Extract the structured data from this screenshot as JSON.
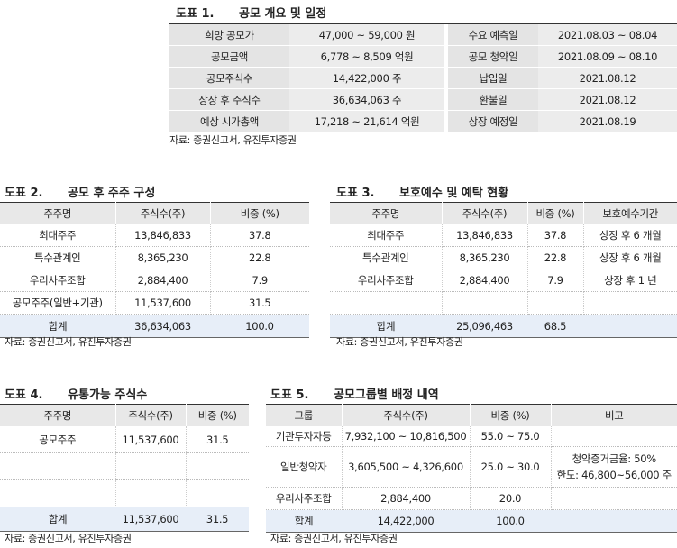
{
  "t1": {
    "num": "도표 1.",
    "title": "공모 개요 및 일정",
    "rows": [
      [
        "희망 공모가",
        "47,000 ~ 59,000 원",
        "수요 예측일",
        "2021.08.03 ~ 08.04"
      ],
      [
        "공모금액",
        "6,778 ~ 8,509 억원",
        "공모 청약일",
        "2021.08.09 ~ 08.10"
      ],
      [
        "공모주식수",
        "14,422,000 주",
        "납입일",
        "2021.08.12"
      ],
      [
        "상장 후 주식수",
        "36,634,063 주",
        "환불일",
        "2021.08.12"
      ],
      [
        "예상 시가총액",
        "17,218 ~ 21,614 억원",
        "상장 예정일",
        "2021.08.19"
      ]
    ],
    "source": "자료: 증권신고서, 유진투자증권"
  },
  "t2": {
    "num": "도표 2.",
    "title": "공모 후 주주 구성",
    "headers": [
      "주주명",
      "주식수(주)",
      "비중 (%)"
    ],
    "rows": [
      [
        "최대주주",
        "13,846,833",
        "37.8"
      ],
      [
        "특수관계인",
        "8,365,230",
        "22.8"
      ],
      [
        "우리사주조합",
        "2,884,400",
        "7.9"
      ],
      [
        "공모주주(일반+기관)",
        "11,537,600",
        "31.5"
      ]
    ],
    "total": [
      "합계",
      "36,634,063",
      "100.0"
    ],
    "source": "자료: 증권신고서, 유진투자증권"
  },
  "t3": {
    "num": "도표 3.",
    "title": "보호예수 및 예탁 현황",
    "headers": [
      "주주명",
      "주식수(주)",
      "비중 (%)",
      "보호예수기간"
    ],
    "rows": [
      [
        "최대주주",
        "13,846,833",
        "37.8",
        "상장 후 6 개월"
      ],
      [
        "특수관계인",
        "8,365,230",
        "22.8",
        "상장 후 6 개월"
      ],
      [
        "우리사주조합",
        "2,884,400",
        "7.9",
        "상장 후 1 년"
      ],
      [
        "",
        "",
        "",
        ""
      ]
    ],
    "total": [
      "합계",
      "25,096,463",
      "68.5",
      ""
    ],
    "source": "자료: 증권신고서, 유진투자증권"
  },
  "t4": {
    "num": "도표 4.",
    "title": "유통가능 주식수",
    "headers": [
      "주주명",
      "주식수(주)",
      "비중 (%)"
    ],
    "rows": [
      [
        "공모주주",
        "11,537,600",
        "31.5"
      ],
      [
        "",
        "",
        ""
      ],
      [
        "",
        "",
        ""
      ]
    ],
    "total": [
      "합계",
      "11,537,600",
      "31.5"
    ],
    "source": "자료: 증권신고서, 유진투자증권"
  },
  "t5": {
    "num": "도표 5.",
    "title": "공모그룹별 배정 내역",
    "headers": [
      "그룹",
      "주식수(주)",
      "비중 (%)",
      "비고"
    ],
    "rows": [
      [
        "기관투자자등",
        "7,932,100 ~ 10,816,500",
        "55.0 ~ 75.0",
        ""
      ],
      [
        "일반청약자",
        "3,605,500 ~ 4,326,600",
        "25.0 ~ 30.0",
        "청약증거금율: 50%"
      ],
      [
        "우리사주조합",
        "2,884,400",
        "20.0",
        ""
      ]
    ],
    "note2": "한도: 46,800~56,000 주",
    "total": [
      "합계",
      "14,422,000",
      "100.0",
      ""
    ],
    "source": "자료: 증권신고서, 유진투자증권"
  }
}
